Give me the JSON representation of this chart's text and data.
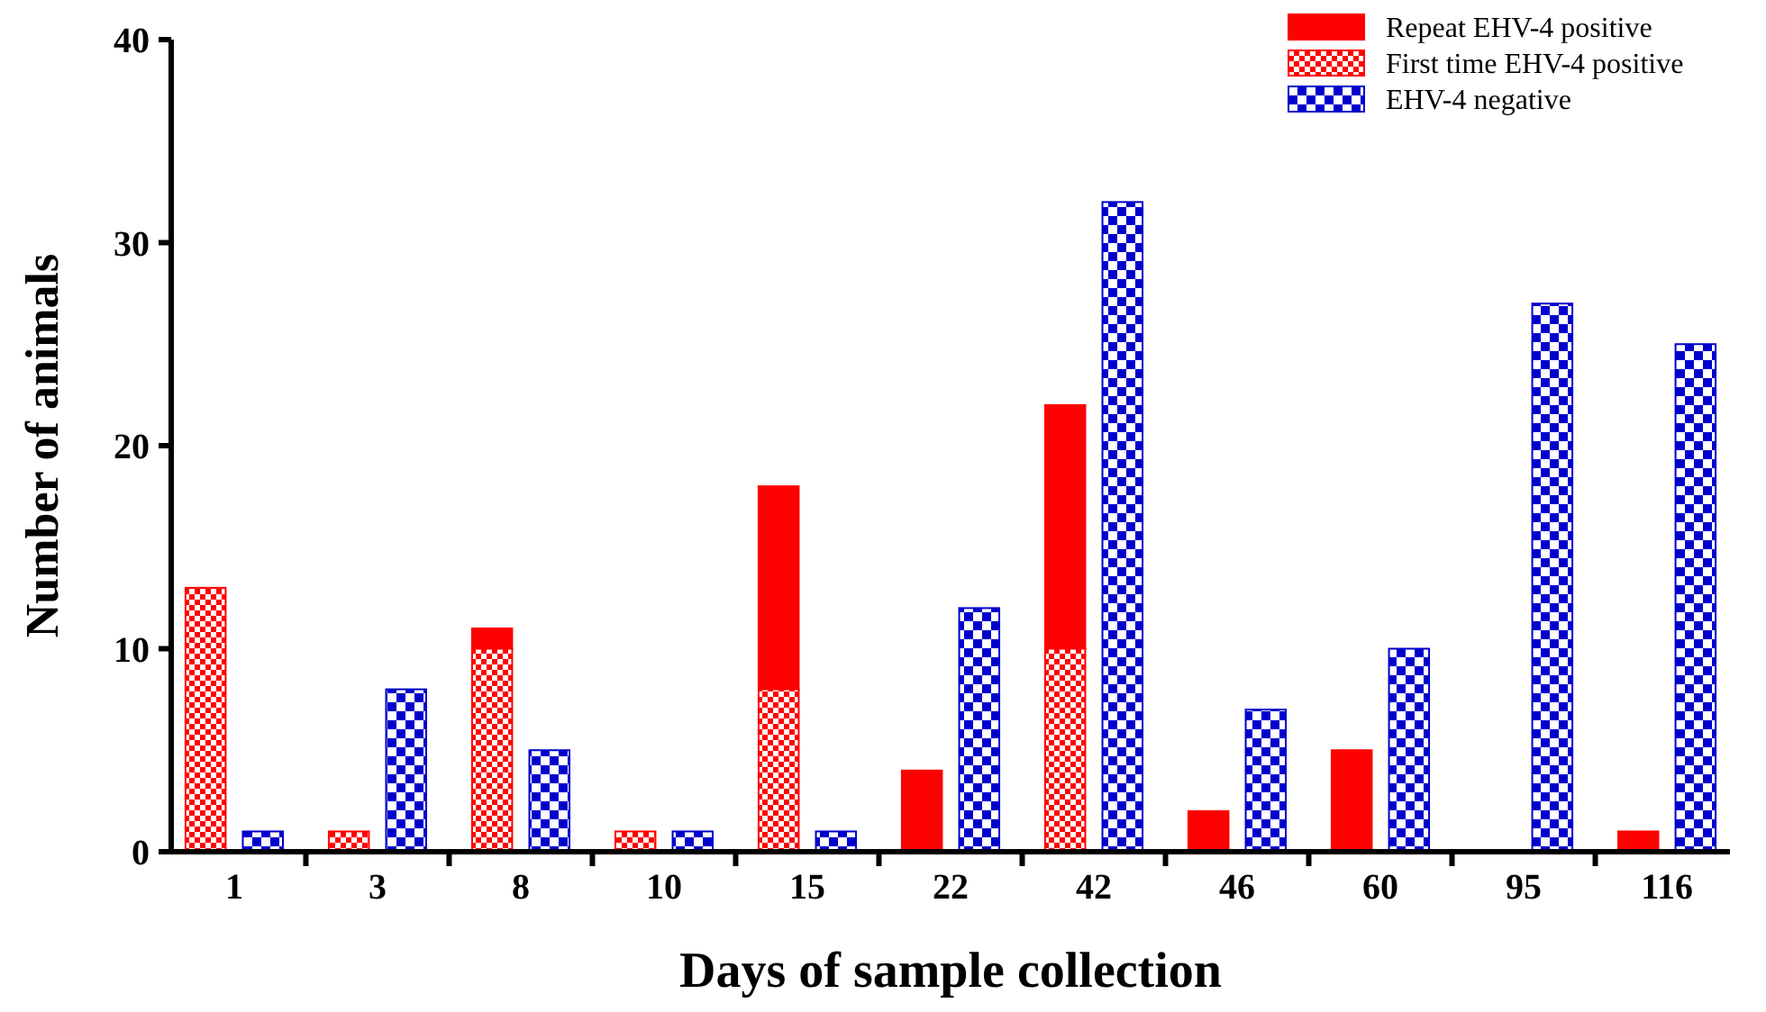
{
  "chart_data": {
    "type": "bar",
    "xlabel": "Days of sample collection",
    "ylabel": "Number of animals",
    "categories": [
      "1",
      "3",
      "8",
      "10",
      "15",
      "22",
      "42",
      "46",
      "60",
      "95",
      "116"
    ],
    "ylim": [
      0,
      40
    ],
    "yticks": [
      0,
      10,
      20,
      30,
      40
    ],
    "legend": "top right",
    "series": [
      {
        "name": "Repeat EHV-4 positive",
        "color": "#ff0000",
        "base": [
          null,
          null,
          10,
          null,
          8,
          0,
          10,
          0,
          0,
          null,
          0
        ],
        "values": [
          0,
          0,
          1,
          0,
          10,
          4,
          12,
          2,
          5,
          0,
          1
        ]
      },
      {
        "name": "First time EHV-4 positive",
        "color": "#ff0000",
        "values": [
          13,
          1,
          10,
          1,
          8,
          0,
          10,
          0,
          0,
          0,
          0
        ]
      },
      {
        "name": "EHV-4 negative",
        "color": "#0000cc",
        "values": [
          1,
          8,
          5,
          1,
          1,
          12,
          32,
          7,
          10,
          27,
          25
        ]
      }
    ]
  }
}
